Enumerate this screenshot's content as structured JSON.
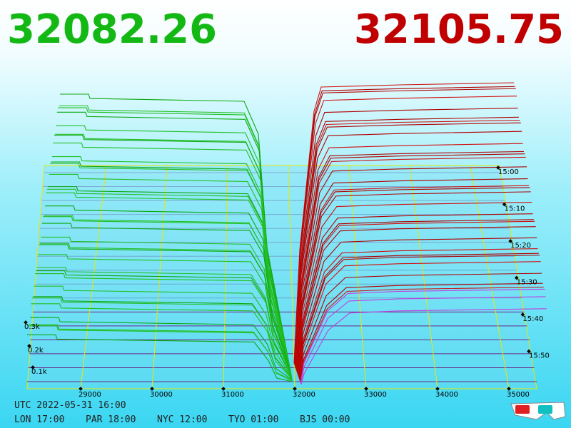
{
  "header": {
    "bid_price": "32082.26",
    "ask_price": "32105.75"
  },
  "price_axis": [
    "29000",
    "30000",
    "31000",
    "32000",
    "33000",
    "34000",
    "35000"
  ],
  "depth_axis": [
    "0.3k",
    "0.2k",
    "0.1k"
  ],
  "time_axis": [
    "15:00",
    "15:10",
    "15:20",
    "15:30",
    "15:40",
    "15:50"
  ],
  "clocks": {
    "utc": "UTC 2022-05-31 16:00",
    "cities": [
      "LON 17:00",
      "PAR 18:00",
      "NYC 12:00",
      "TYO 01:00",
      "BJS 00:00"
    ]
  }
}
